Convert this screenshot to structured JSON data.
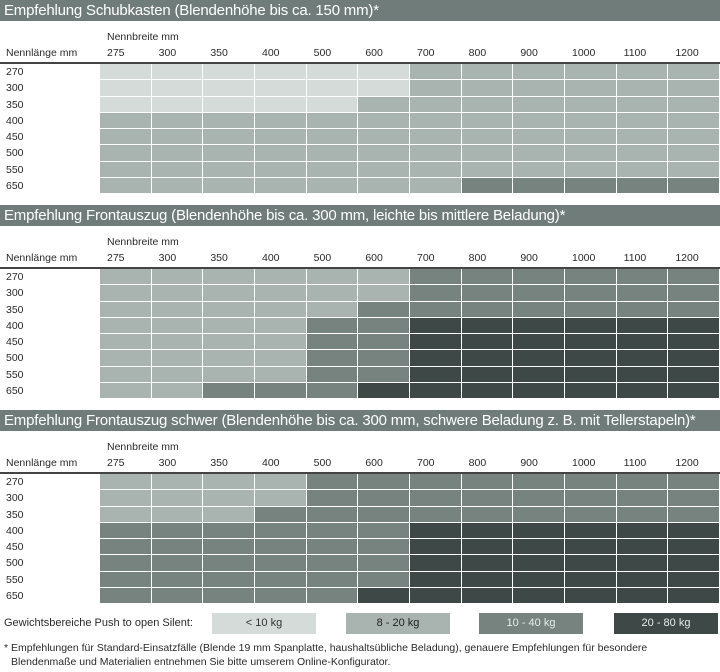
{
  "colors": {
    "title_bar": "#6f7c79",
    "level_1": "#d5dbd9",
    "level_2": "#a9b3b0",
    "level_3": "#76837f",
    "level_4": "#3e4846"
  },
  "columns_label": "Nennbreite mm",
  "rows_label": "Nennlänge mm",
  "columns": [
    "275",
    "300",
    "350",
    "400",
    "500",
    "600",
    "700",
    "800",
    "900",
    "1000",
    "1100",
    "1200"
  ],
  "rows": [
    "270",
    "300",
    "350",
    "400",
    "450",
    "500",
    "550",
    "650"
  ],
  "tables": [
    {
      "title": "Empfehlung Schubkasten (Blendenhöhe bis ca. 150 mm)*",
      "levels": [
        [
          1,
          1,
          1,
          1,
          1,
          1,
          2,
          2,
          2,
          2,
          2,
          2
        ],
        [
          1,
          1,
          1,
          1,
          1,
          1,
          2,
          2,
          2,
          2,
          2,
          2
        ],
        [
          1,
          1,
          1,
          1,
          1,
          2,
          2,
          2,
          2,
          2,
          2,
          2
        ],
        [
          2,
          2,
          2,
          2,
          2,
          2,
          2,
          2,
          2,
          2,
          2,
          2
        ],
        [
          2,
          2,
          2,
          2,
          2,
          2,
          2,
          2,
          2,
          2,
          2,
          2
        ],
        [
          2,
          2,
          2,
          2,
          2,
          2,
          2,
          2,
          2,
          2,
          2,
          2
        ],
        [
          2,
          2,
          2,
          2,
          2,
          2,
          2,
          2,
          2,
          2,
          2,
          2
        ],
        [
          2,
          2,
          2,
          2,
          2,
          2,
          2,
          3,
          3,
          3,
          3,
          3
        ]
      ]
    },
    {
      "title": "Empfehlung Frontauszug (Blendenhöhe bis ca. 300 mm, leichte bis mittlere Beladung)*",
      "levels": [
        [
          2,
          2,
          2,
          2,
          2,
          2,
          3,
          3,
          3,
          3,
          3,
          3
        ],
        [
          2,
          2,
          2,
          2,
          2,
          2,
          3,
          3,
          3,
          3,
          3,
          3
        ],
        [
          2,
          2,
          2,
          2,
          2,
          3,
          3,
          3,
          3,
          3,
          3,
          3
        ],
        [
          2,
          2,
          2,
          2,
          3,
          3,
          4,
          4,
          4,
          4,
          4,
          4
        ],
        [
          2,
          2,
          2,
          2,
          3,
          3,
          4,
          4,
          4,
          4,
          4,
          4
        ],
        [
          2,
          2,
          2,
          2,
          3,
          3,
          4,
          4,
          4,
          4,
          4,
          4
        ],
        [
          2,
          2,
          2,
          2,
          3,
          3,
          4,
          4,
          4,
          4,
          4,
          4
        ],
        [
          2,
          2,
          3,
          3,
          3,
          4,
          4,
          4,
          4,
          4,
          4,
          4
        ]
      ]
    },
    {
      "title": "Empfehlung Frontauszug schwer (Blendenhöhe bis ca. 300 mm, schwere Beladung z. B. mit Tellerstapeln)*",
      "levels": [
        [
          2,
          2,
          2,
          2,
          3,
          3,
          3,
          3,
          3,
          3,
          3,
          3
        ],
        [
          2,
          2,
          2,
          2,
          3,
          3,
          3,
          3,
          3,
          3,
          3,
          3
        ],
        [
          2,
          2,
          2,
          3,
          3,
          3,
          3,
          3,
          3,
          3,
          3,
          3
        ],
        [
          3,
          3,
          3,
          3,
          3,
          3,
          4,
          4,
          4,
          4,
          4,
          4
        ],
        [
          3,
          3,
          3,
          3,
          3,
          3,
          4,
          4,
          4,
          4,
          4,
          4
        ],
        [
          3,
          3,
          3,
          3,
          3,
          3,
          4,
          4,
          4,
          4,
          4,
          4
        ],
        [
          3,
          3,
          3,
          3,
          3,
          3,
          4,
          4,
          4,
          4,
          4,
          4
        ],
        [
          3,
          3,
          3,
          3,
          3,
          4,
          4,
          4,
          4,
          4,
          4,
          4
        ]
      ]
    }
  ],
  "legend": {
    "label": "Gewichtsbereiche Push to open Silent:",
    "items": [
      {
        "level": 1,
        "label": "< 10 kg"
      },
      {
        "level": 2,
        "label": "8 - 20 kg"
      },
      {
        "level": 3,
        "label": "10 - 40 kg"
      },
      {
        "level": 4,
        "label": "20 - 80 kg"
      }
    ]
  },
  "footnote": {
    "line1": "* Empfehlungen für Standard-Einsatzfälle (Blende 19 mm Spanplatte, haushaltsübliche Beladung), genauere Empfehlungen für besondere",
    "line2": "Blendenmaße und Materialien entnehmen Sie bitte umserem Online-Konfigurator."
  }
}
